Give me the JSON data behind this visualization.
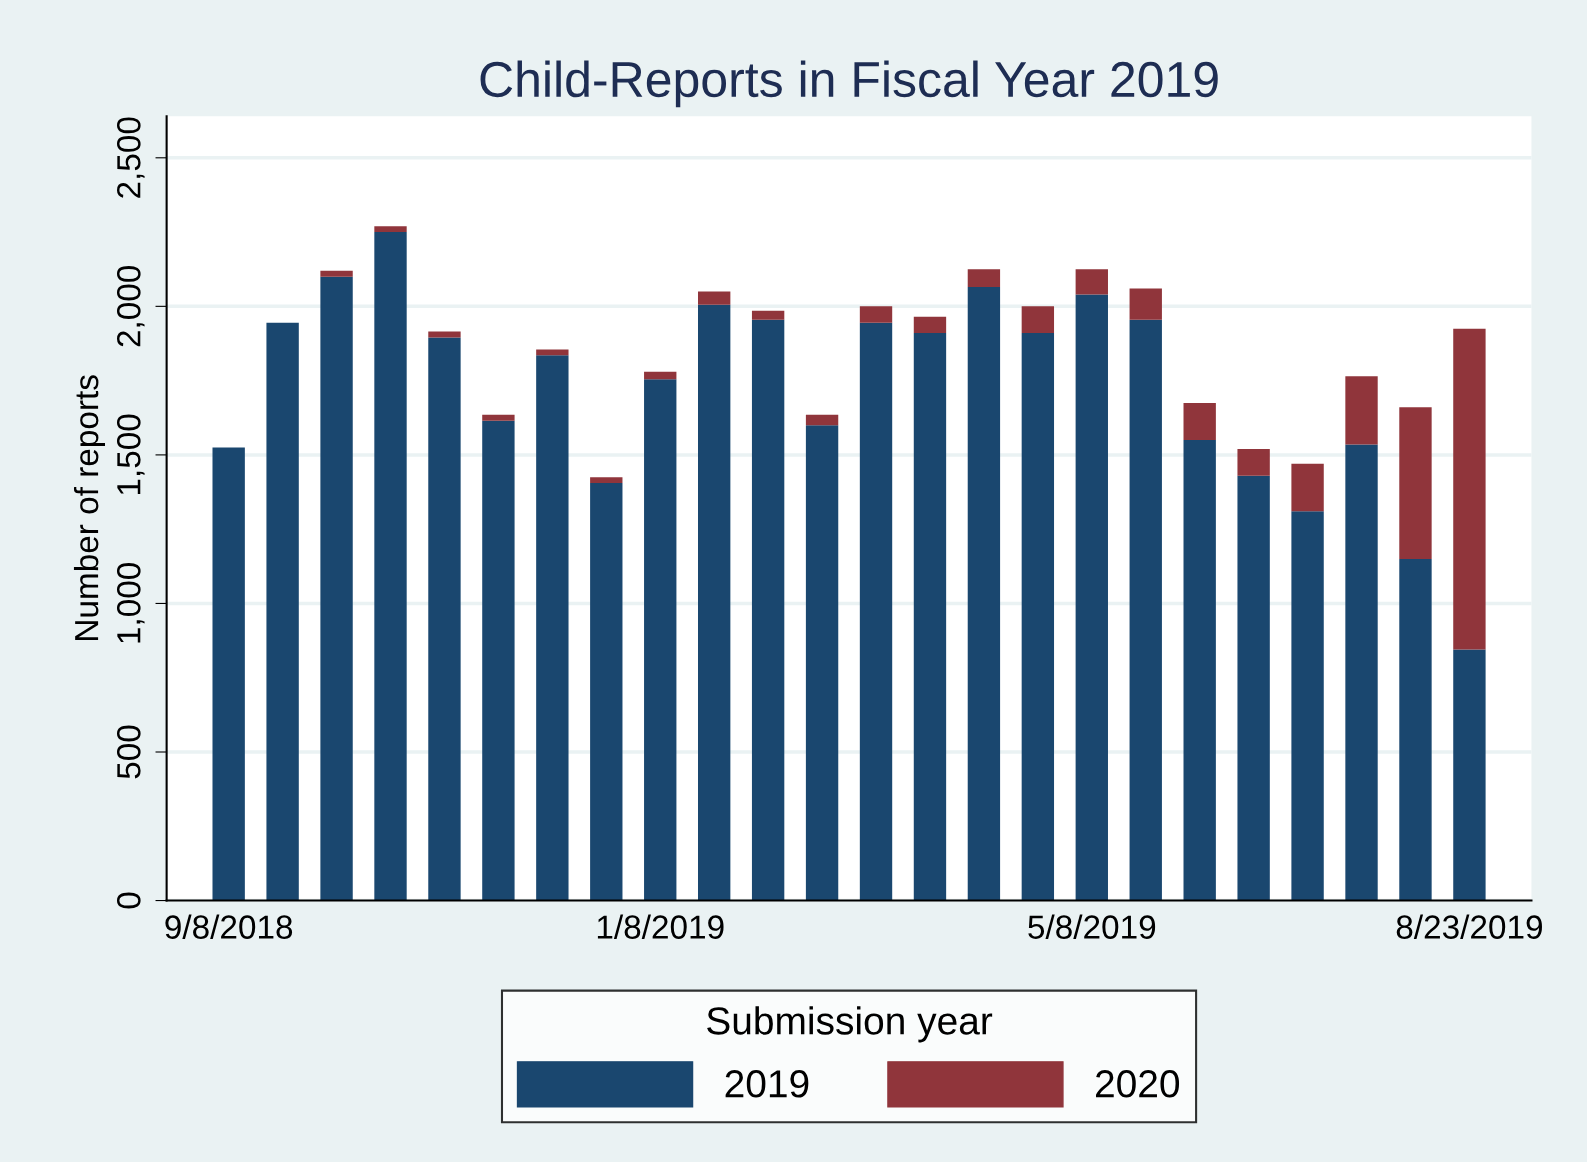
{
  "chart_data": {
    "type": "bar",
    "title": "Child-Reports in Fiscal Year 2019",
    "ylabel": "Number of reports",
    "legend_title": "Submission year",
    "categories": [
      "9/8/2018",
      null,
      null,
      null,
      null,
      null,
      null,
      null,
      "1/8/2019",
      null,
      null,
      null,
      null,
      null,
      null,
      null,
      "5/8/2019",
      null,
      null,
      null,
      null,
      null,
      null,
      "8/23/2019"
    ],
    "stacked": true,
    "series": [
      {
        "name": "2019",
        "color": "#1a476f",
        "values": [
          1525,
          1945,
          2100,
          2250,
          1895,
          1615,
          1835,
          1405,
          1755,
          2005,
          1955,
          1600,
          1945,
          1910,
          2065,
          1910,
          2040,
          1955,
          1550,
          1430,
          1310,
          1535,
          1150,
          845
        ]
      },
      {
        "name": "2020",
        "color": "#90353b",
        "values": [
          0,
          0,
          20,
          20,
          20,
          20,
          20,
          20,
          25,
          45,
          30,
          35,
          55,
          55,
          60,
          90,
          85,
          105,
          125,
          90,
          160,
          230,
          510,
          1080
        ]
      }
    ],
    "ylim": [
      0,
      2640
    ],
    "yticks": [
      {
        "value": 0,
        "label": "0"
      },
      {
        "value": 500,
        "label": "500"
      },
      {
        "value": 1000,
        "label": "1,000"
      },
      {
        "value": 1500,
        "label": "1,500"
      },
      {
        "value": 2000,
        "label": "2,000"
      },
      {
        "value": 2500,
        "label": "2,500"
      }
    ],
    "grid": "y",
    "legend": "bottom"
  }
}
